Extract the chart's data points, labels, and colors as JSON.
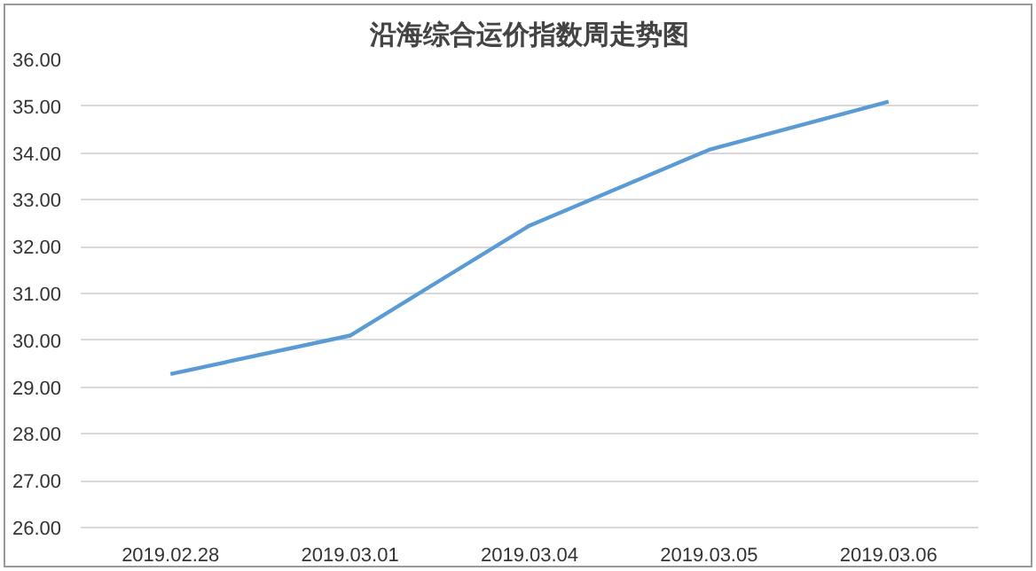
{
  "chart_data": {
    "type": "line",
    "title": "沿海综合运价指数周走势图",
    "categories": [
      "2019.02.28",
      "2019.03.01",
      "2019.03.04",
      "2019.03.05",
      "2019.03.06"
    ],
    "series": [
      {
        "color": "#5b9bd5",
        "values": [
          29.28,
          30.1,
          32.45,
          34.07,
          35.1
        ]
      }
    ],
    "ylim": [
      26,
      36
    ],
    "yticks": [
      {
        "value": 26,
        "label": "26.00"
      },
      {
        "value": 27,
        "label": "27.00"
      },
      {
        "value": 28,
        "label": "28.00"
      },
      {
        "value": 29,
        "label": "29.00"
      },
      {
        "value": 30,
        "label": "30.00"
      },
      {
        "value": 31,
        "label": "31.00"
      },
      {
        "value": 32,
        "label": "32.00"
      },
      {
        "value": 33,
        "label": "33.00"
      },
      {
        "value": 34,
        "label": "34.00"
      },
      {
        "value": 35,
        "label": "35.00"
      },
      {
        "value": 36,
        "label": "36.00"
      }
    ],
    "grid": "y",
    "marker": "none",
    "line_style": "solid"
  }
}
